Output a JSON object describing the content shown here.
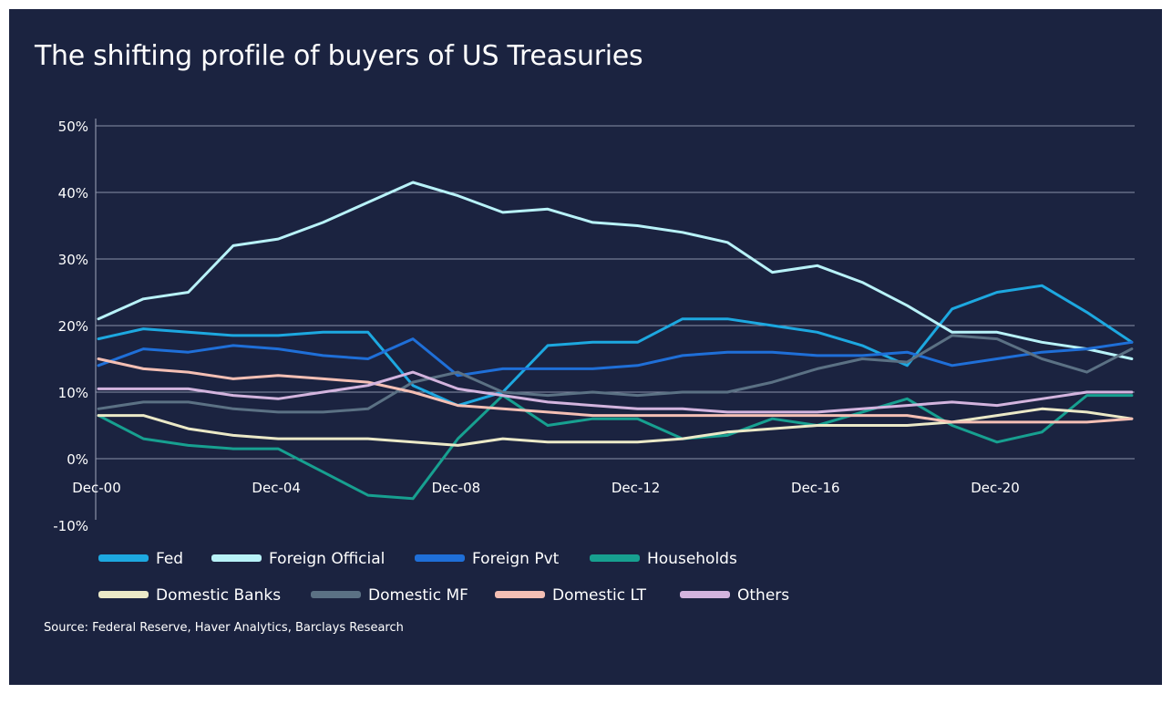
{
  "colors": {
    "background": "#1b2340",
    "text": "#ffffff",
    "grid": "#8a91a8"
  },
  "chart_data": {
    "type": "line",
    "title": "The shifting profile of buyers of US Treasuries",
    "source": "Source: Federal Reserve, Haver Analytics, Barclays Research",
    "xlabel": "",
    "ylabel": "",
    "x_ticks": [
      "Dec-00",
      "Dec-04",
      "Dec-08",
      "Dec-12",
      "Dec-16",
      "Dec-20"
    ],
    "y_ticks": [
      "50%",
      "40%",
      "30%",
      "20%",
      "10%",
      "0%",
      "-10%"
    ],
    "ylim": [
      -10,
      50
    ],
    "xlim": [
      "Dec-00",
      "Sep-23"
    ],
    "grid": true,
    "legend_position": "bottom",
    "x": [
      "Dec-00",
      "Dec-01",
      "Dec-02",
      "Dec-03",
      "Dec-04",
      "Dec-05",
      "Dec-06",
      "Dec-07",
      "Dec-08",
      "Dec-09",
      "Dec-10",
      "Dec-11",
      "Dec-12",
      "Dec-13",
      "Dec-14",
      "Dec-15",
      "Dec-16",
      "Dec-17",
      "Dec-18",
      "Dec-19",
      "Dec-20",
      "Dec-21",
      "Dec-22",
      "Sep-23"
    ],
    "series": [
      {
        "name": "Fed",
        "color": "#1da8e0",
        "values": [
          18,
          19.5,
          19,
          18.5,
          18.5,
          19,
          19,
          11,
          8,
          10,
          17,
          17.5,
          17.5,
          21,
          21,
          20,
          19,
          17,
          14,
          22.5,
          25,
          26,
          22,
          17.5
        ]
      },
      {
        "name": "Foreign Official",
        "color": "#b8f2f8",
        "values": [
          21,
          24,
          25,
          32,
          33,
          35.5,
          38.5,
          41.5,
          39.5,
          37,
          37.5,
          35.5,
          35,
          34,
          32.5,
          28,
          29,
          26.5,
          23,
          19,
          19,
          17.5,
          16.5,
          15
        ]
      },
      {
        "name": "Foreign Pvt",
        "color": "#1f6fd8",
        "values": [
          14,
          16.5,
          16,
          17,
          16.5,
          15.5,
          15,
          18,
          12.5,
          13.5,
          13.5,
          13.5,
          14,
          15.5,
          16,
          16,
          15.5,
          15.5,
          16,
          14,
          15,
          16,
          16.5,
          17.5
        ]
      },
      {
        "name": "Households",
        "color": "#17a090",
        "values": [
          6.5,
          3,
          2,
          1.5,
          1.5,
          -2,
          -5.5,
          -6,
          3,
          9.5,
          5,
          6,
          6,
          3,
          3.5,
          6,
          5,
          7,
          9,
          5,
          2.5,
          4,
          9.5,
          9.5
        ]
      },
      {
        "name": "Domestic Banks",
        "color": "#ebe9c7",
        "values": [
          6.5,
          6.5,
          4.5,
          3.5,
          3,
          3,
          3,
          2.5,
          2,
          3,
          2.5,
          2.5,
          2.5,
          3,
          4,
          4.5,
          5,
          5,
          5,
          5.5,
          6.5,
          7.5,
          7,
          6
        ]
      },
      {
        "name": "Domestic MF",
        "color": "#5b7184",
        "values": [
          7.5,
          8.5,
          8.5,
          7.5,
          7,
          7,
          7.5,
          11.5,
          13,
          10,
          9.5,
          10,
          9.5,
          10,
          10,
          11.5,
          13.5,
          15,
          14.5,
          18.5,
          18,
          15,
          13,
          16.5
        ]
      },
      {
        "name": "Domestic LT",
        "color": "#f4bfb4",
        "values": [
          15,
          13.5,
          13,
          12,
          12.5,
          12,
          11.5,
          10,
          8,
          7.5,
          7,
          6.5,
          6.5,
          6.5,
          6.5,
          6.5,
          6.5,
          6.5,
          6.5,
          5.5,
          5.5,
          5.5,
          5.5,
          6
        ]
      },
      {
        "name": "Others",
        "color": "#d3b4de",
        "values": [
          10.5,
          10.5,
          10.5,
          9.5,
          9,
          10,
          11,
          13,
          10.5,
          9.5,
          8.5,
          8,
          7.5,
          7.5,
          7,
          7,
          7,
          7.5,
          8,
          8.5,
          8,
          9,
          10,
          10
        ]
      }
    ]
  }
}
